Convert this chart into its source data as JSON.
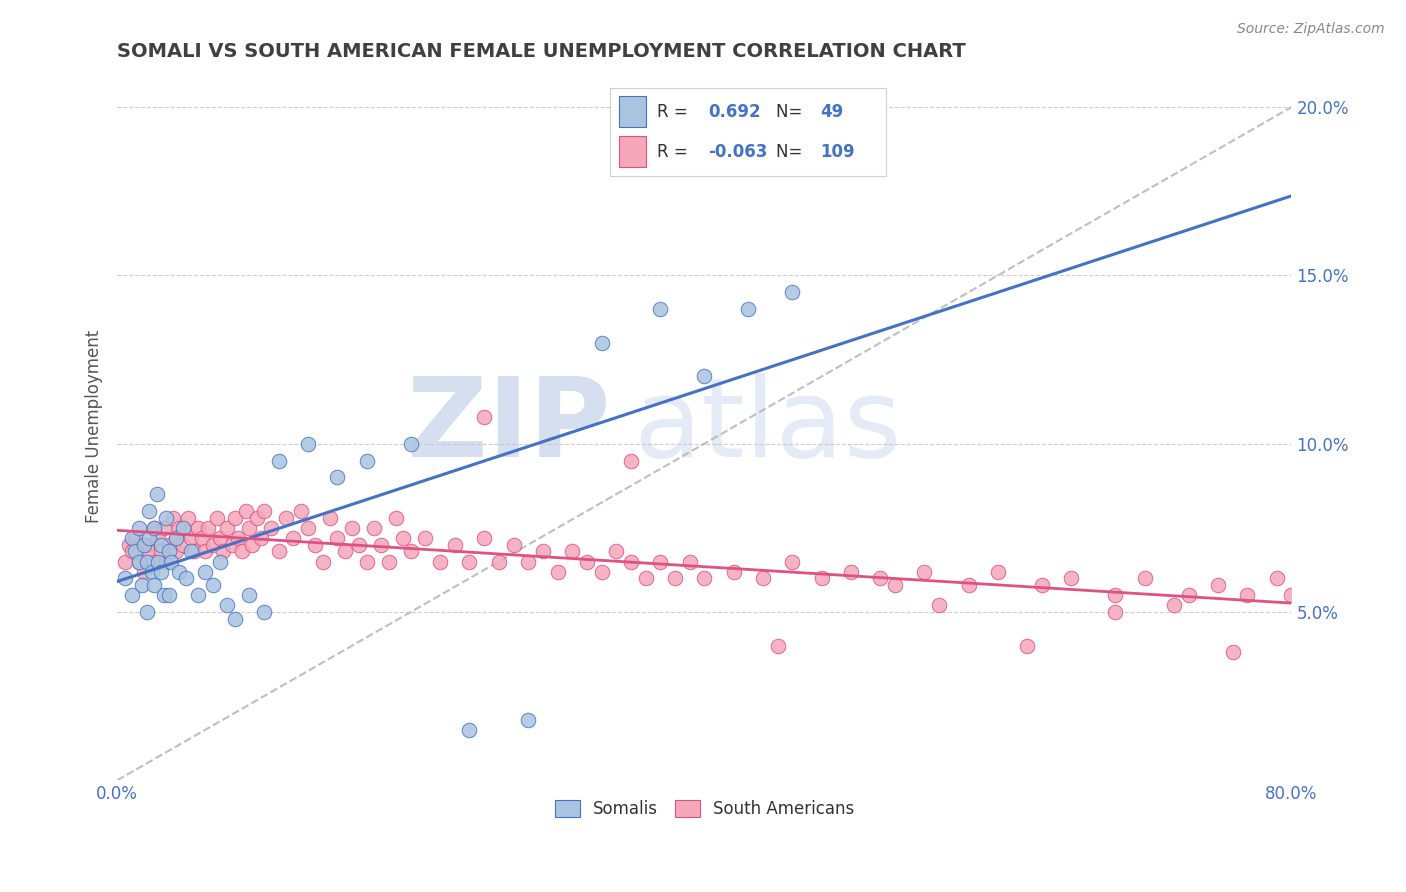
{
  "title": "SOMALI VS SOUTH AMERICAN FEMALE UNEMPLOYMENT CORRELATION CHART",
  "source": "Source: ZipAtlas.com",
  "ylabel": "Female Unemployment",
  "xlim": [
    0.0,
    0.8
  ],
  "ylim": [
    0.0,
    0.21
  ],
  "ytick_positions": [
    0.05,
    0.1,
    0.15,
    0.2
  ],
  "ytick_labels": [
    "5.0%",
    "10.0%",
    "15.0%",
    "20.0%"
  ],
  "somali_R": 0.692,
  "somali_N": 49,
  "sa_R": -0.063,
  "sa_N": 109,
  "somali_color": "#a8c4e0",
  "sa_color": "#f4a7b9",
  "somali_line_color": "#4472c4",
  "sa_line_color": "#e05080",
  "trend_line_color": "#b0b0b0",
  "background_color": "#ffffff",
  "grid_color": "#c8c8c8",
  "title_color": "#404040",
  "somali_x": [
    0.005,
    0.01,
    0.01,
    0.012,
    0.015,
    0.015,
    0.017,
    0.018,
    0.02,
    0.02,
    0.022,
    0.022,
    0.024,
    0.025,
    0.025,
    0.027,
    0.028,
    0.03,
    0.03,
    0.032,
    0.033,
    0.035,
    0.035,
    0.037,
    0.04,
    0.042,
    0.045,
    0.047,
    0.05,
    0.055,
    0.06,
    0.065,
    0.07,
    0.075,
    0.08,
    0.09,
    0.1,
    0.11,
    0.13,
    0.15,
    0.17,
    0.2,
    0.24,
    0.28,
    0.33,
    0.37,
    0.4,
    0.43,
    0.46
  ],
  "somali_y": [
    0.06,
    0.055,
    0.072,
    0.068,
    0.065,
    0.075,
    0.058,
    0.07,
    0.065,
    0.05,
    0.072,
    0.08,
    0.062,
    0.058,
    0.075,
    0.085,
    0.065,
    0.07,
    0.062,
    0.055,
    0.078,
    0.068,
    0.055,
    0.065,
    0.072,
    0.062,
    0.075,
    0.06,
    0.068,
    0.055,
    0.062,
    0.058,
    0.065,
    0.052,
    0.048,
    0.055,
    0.05,
    0.095,
    0.1,
    0.09,
    0.095,
    0.1,
    0.015,
    0.018,
    0.13,
    0.14,
    0.12,
    0.14,
    0.145
  ],
  "sa_x": [
    0.005,
    0.008,
    0.01,
    0.012,
    0.015,
    0.018,
    0.02,
    0.022,
    0.025,
    0.025,
    0.028,
    0.03,
    0.032,
    0.033,
    0.035,
    0.038,
    0.04,
    0.04,
    0.042,
    0.045,
    0.048,
    0.05,
    0.052,
    0.055,
    0.058,
    0.06,
    0.062,
    0.065,
    0.068,
    0.07,
    0.072,
    0.075,
    0.078,
    0.08,
    0.082,
    0.085,
    0.088,
    0.09,
    0.092,
    0.095,
    0.098,
    0.1,
    0.105,
    0.11,
    0.115,
    0.12,
    0.125,
    0.13,
    0.135,
    0.14,
    0.145,
    0.15,
    0.155,
    0.16,
    0.165,
    0.17,
    0.175,
    0.18,
    0.185,
    0.19,
    0.195,
    0.2,
    0.21,
    0.22,
    0.23,
    0.24,
    0.25,
    0.26,
    0.27,
    0.28,
    0.29,
    0.3,
    0.31,
    0.32,
    0.33,
    0.34,
    0.35,
    0.36,
    0.37,
    0.38,
    0.39,
    0.4,
    0.42,
    0.44,
    0.46,
    0.48,
    0.5,
    0.53,
    0.55,
    0.58,
    0.6,
    0.63,
    0.65,
    0.68,
    0.7,
    0.73,
    0.75,
    0.77,
    0.79,
    0.8,
    0.25,
    0.35,
    0.45,
    0.52,
    0.56,
    0.62,
    0.68,
    0.72,
    0.76
  ],
  "sa_y": [
    0.065,
    0.07,
    0.068,
    0.072,
    0.065,
    0.062,
    0.07,
    0.068,
    0.075,
    0.065,
    0.072,
    0.068,
    0.075,
    0.065,
    0.07,
    0.078,
    0.072,
    0.068,
    0.075,
    0.07,
    0.078,
    0.072,
    0.068,
    0.075,
    0.072,
    0.068,
    0.075,
    0.07,
    0.078,
    0.072,
    0.068,
    0.075,
    0.07,
    0.078,
    0.072,
    0.068,
    0.08,
    0.075,
    0.07,
    0.078,
    0.072,
    0.08,
    0.075,
    0.068,
    0.078,
    0.072,
    0.08,
    0.075,
    0.07,
    0.065,
    0.078,
    0.072,
    0.068,
    0.075,
    0.07,
    0.065,
    0.075,
    0.07,
    0.065,
    0.078,
    0.072,
    0.068,
    0.072,
    0.065,
    0.07,
    0.065,
    0.072,
    0.065,
    0.07,
    0.065,
    0.068,
    0.062,
    0.068,
    0.065,
    0.062,
    0.068,
    0.065,
    0.06,
    0.065,
    0.06,
    0.065,
    0.06,
    0.062,
    0.06,
    0.065,
    0.06,
    0.062,
    0.058,
    0.062,
    0.058,
    0.062,
    0.058,
    0.06,
    0.055,
    0.06,
    0.055,
    0.058,
    0.055,
    0.06,
    0.055,
    0.108,
    0.095,
    0.04,
    0.06,
    0.052,
    0.04,
    0.05,
    0.052,
    0.038
  ]
}
